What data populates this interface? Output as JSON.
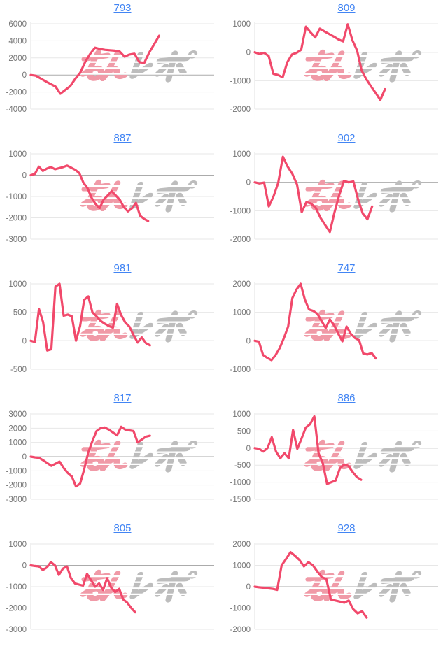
{
  "page": {
    "background": "#ffffff",
    "title_link_color": "#4285f4",
    "line_color": "#f1496b",
    "grid_color": "#e7e7e7",
    "zero_line_color": "#ababab",
    "axis_line_color": "#e0e0e0",
    "tick_label_color": "#767676"
  },
  "watermark": {
    "text": "みんレポ",
    "pink_color": "#f09aa7",
    "gray_color": "#bdbdbd"
  },
  "chart_data": [
    {
      "type": "line",
      "title": "793",
      "ylim": [
        -4000,
        6000
      ],
      "yticks": [
        6000,
        4000,
        2000,
        0,
        -2000,
        -4000
      ],
      "x_extent": 0.7,
      "values": [
        0,
        -80,
        -400,
        -750,
        -1050,
        -1350,
        -2200,
        -1750,
        -1300,
        -450,
        250,
        1500,
        2450,
        3200,
        3050,
        2950,
        2900,
        2850,
        2750,
        2150,
        2400,
        2500,
        1500,
        1430,
        2650,
        3600,
        4600
      ]
    },
    {
      "type": "line",
      "title": "809",
      "ylim": [
        -2000,
        1000
      ],
      "yticks": [
        1000,
        0,
        -1000,
        -2000
      ],
      "x_extent": 0.71,
      "values": [
        0,
        -60,
        -20,
        -130,
        -760,
        -800,
        -880,
        -350,
        -80,
        -20,
        90,
        900,
        700,
        520,
        830,
        730,
        640,
        550,
        450,
        380,
        980,
        420,
        60,
        -650,
        -950,
        -1200,
        -1430,
        -1680,
        -1300
      ]
    },
    {
      "type": "line",
      "title": "887",
      "ylim": [
        -3000,
        1000
      ],
      "yticks": [
        1000,
        0,
        -1000,
        -2000,
        -3000
      ],
      "x_extent": 0.64,
      "values": [
        0,
        60,
        400,
        200,
        310,
        380,
        280,
        330,
        380,
        450,
        350,
        250,
        100,
        -350,
        -600,
        -1050,
        -1350,
        -1550,
        -1150,
        -950,
        -750,
        -950,
        -1150,
        -1500,
        -1700,
        -1550,
        -1300,
        -1900,
        -2050,
        -2150
      ]
    },
    {
      "type": "line",
      "title": "902",
      "ylim": [
        -2000,
        1000
      ],
      "yticks": [
        1000,
        0,
        -1000,
        -2000
      ],
      "x_extent": 0.64,
      "values": [
        0,
        -40,
        -10,
        -850,
        -500,
        -20,
        900,
        550,
        300,
        -80,
        -1050,
        -700,
        -750,
        -900,
        -1250,
        -1500,
        -1750,
        -1050,
        -450,
        50,
        0,
        30,
        -600,
        -1100,
        -1300,
        -850
      ]
    },
    {
      "type": "line",
      "title": "981",
      "ylim": [
        -500,
        1000
      ],
      "yticks": [
        1000,
        500,
        0,
        -500
      ],
      "x_extent": 0.65,
      "values": [
        0,
        -20,
        560,
        330,
        -170,
        -150,
        950,
        1000,
        440,
        460,
        430,
        0,
        260,
        720,
        780,
        500,
        430,
        350,
        300,
        260,
        230,
        650,
        450,
        320,
        250,
        100,
        -30,
        60,
        -40,
        -80
      ]
    },
    {
      "type": "line",
      "title": "747",
      "ylim": [
        -1000,
        2000
      ],
      "yticks": [
        2000,
        1000,
        0,
        -1000
      ],
      "x_extent": 0.66,
      "values": [
        0,
        -30,
        -500,
        -600,
        -680,
        -500,
        -250,
        100,
        500,
        1500,
        1800,
        2000,
        1450,
        1100,
        1050,
        950,
        700,
        450,
        750,
        550,
        250,
        -20,
        500,
        250,
        100,
        20,
        -450,
        -480,
        -430,
        -620
      ]
    },
    {
      "type": "line",
      "title": "817",
      "ylim": [
        -3000,
        3000
      ],
      "yticks": [
        3000,
        2000,
        1000,
        0,
        -1000,
        -2000,
        -3000
      ],
      "x_extent": 0.65,
      "values": [
        0,
        -50,
        -80,
        -250,
        -450,
        -650,
        -500,
        -350,
        -800,
        -1150,
        -1400,
        -2100,
        -1900,
        -900,
        300,
        1100,
        1800,
        2000,
        2050,
        1900,
        1700,
        1500,
        2100,
        1900,
        1850,
        1800,
        1000,
        1200,
        1400,
        1470
      ]
    },
    {
      "type": "line",
      "title": "886",
      "ylim": [
        -1500,
        1000
      ],
      "yticks": [
        1000,
        500,
        0,
        -500,
        -1000,
        -1500
      ],
      "x_extent": 0.58,
      "values": [
        0,
        -20,
        -100,
        0,
        320,
        -100,
        -300,
        -150,
        -300,
        530,
        -20,
        280,
        600,
        700,
        930,
        -150,
        -450,
        -1050,
        -1000,
        -950,
        -600,
        -480,
        -520,
        -700,
        -850,
        -930
      ]
    },
    {
      "type": "line",
      "title": "805",
      "ylim": [
        -3000,
        1000
      ],
      "yticks": [
        1000,
        0,
        -1000,
        -2000,
        -3000
      ],
      "x_extent": 0.57,
      "values": [
        0,
        -30,
        -50,
        -220,
        -100,
        150,
        0,
        -450,
        -150,
        -50,
        -600,
        -850,
        -900,
        -950,
        -400,
        -700,
        -1000,
        -850,
        -1150,
        -600,
        -1050,
        -1250,
        -1100,
        -1600,
        -1750,
        -2000,
        -2200
      ]
    },
    {
      "type": "line",
      "title": "928",
      "ylim": [
        -2000,
        2000
      ],
      "yticks": [
        2000,
        1000,
        0,
        -1000,
        -2000
      ],
      "x_extent": 0.61,
      "values": [
        0,
        -30,
        -50,
        -80,
        -100,
        -150,
        1000,
        1300,
        1620,
        1450,
        1250,
        950,
        1150,
        1000,
        700,
        450,
        350,
        -600,
        -650,
        -700,
        -750,
        -650,
        -1050,
        -1250,
        -1150,
        -1450
      ]
    }
  ]
}
